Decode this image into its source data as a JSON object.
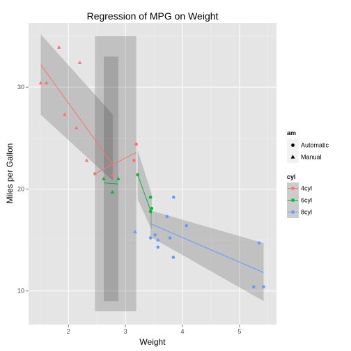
{
  "chart_data": {
    "type": "scatter",
    "title": "Regression of MPG on Weight",
    "xlabel": "Weight",
    "ylabel": "Miles per Gallon",
    "xlim": [
      1.3,
      5.65
    ],
    "ylim": [
      6.7,
      36.3
    ],
    "x_ticks": [
      "2",
      "3",
      "4",
      "5"
    ],
    "y_ticks": [
      "10",
      "20",
      "30"
    ],
    "x_tick_values": [
      2,
      3,
      4,
      5
    ],
    "y_tick_values": [
      10,
      20,
      30
    ],
    "grid": true,
    "legend_placement": "right",
    "legends": {
      "am": {
        "title": "am",
        "entries": [
          "Automatic",
          "Manual"
        ]
      },
      "cyl": {
        "title": "cyl",
        "entries": [
          "4cyl",
          "6cyl",
          "8cyl"
        ]
      }
    },
    "colors": {
      "4cyl": "#F8766D",
      "6cyl": "#00BA38",
      "8cyl": "#619CFF"
    },
    "series": [
      {
        "name": "4cyl",
        "points": [
          {
            "x": 1.513,
            "y": 30.4,
            "am": "Manual"
          },
          {
            "x": 1.615,
            "y": 30.4,
            "am": "Manual"
          },
          {
            "x": 1.835,
            "y": 33.9,
            "am": "Manual"
          },
          {
            "x": 1.935,
            "y": 27.3,
            "am": "Manual"
          },
          {
            "x": 2.14,
            "y": 26.0,
            "am": "Manual"
          },
          {
            "x": 2.2,
            "y": 32.4,
            "am": "Manual"
          },
          {
            "x": 2.32,
            "y": 22.8,
            "am": "Manual"
          },
          {
            "x": 2.465,
            "y": 21.5,
            "am": "Automatic"
          },
          {
            "x": 2.78,
            "y": 21.4,
            "am": "Manual"
          },
          {
            "x": 3.15,
            "y": 22.8,
            "am": "Automatic"
          },
          {
            "x": 3.19,
            "y": 24.4,
            "am": "Automatic"
          }
        ],
        "fits": [
          {
            "am": "Manual",
            "x": [
              1.513,
              2.78
            ],
            "y": [
              32.2,
              22.4
            ],
            "band_lower": [
              27.3,
              20.8
            ],
            "band_upper": [
              35.2,
              27.3
            ]
          },
          {
            "am": "Automatic",
            "x": [
              2.465,
              3.19
            ],
            "y": [
              21.5,
              23.6
            ],
            "band_lower": [
              8.0,
              8.0
            ],
            "band_upper": [
              35.0,
              35.0
            ]
          }
        ]
      },
      {
        "name": "6cyl",
        "points": [
          {
            "x": 2.62,
            "y": 21.0,
            "am": "Manual"
          },
          {
            "x": 2.77,
            "y": 19.7,
            "am": "Manual"
          },
          {
            "x": 2.875,
            "y": 21.0,
            "am": "Manual"
          },
          {
            "x": 3.215,
            "y": 21.4,
            "am": "Automatic"
          },
          {
            "x": 3.44,
            "y": 19.2,
            "am": "Automatic"
          },
          {
            "x": 3.44,
            "y": 17.8,
            "am": "Automatic"
          },
          {
            "x": 3.46,
            "y": 18.1,
            "am": "Automatic"
          }
        ],
        "fits": [
          {
            "am": "Manual",
            "x": [
              2.62,
              2.875
            ],
            "y": [
              20.6,
              20.5
            ],
            "band_lower": [
              9.0,
              9.0
            ],
            "band_upper": [
              33.0,
              33.0
            ]
          },
          {
            "am": "Automatic",
            "x": [
              3.215,
              3.46
            ],
            "y": [
              21.4,
              17.6
            ],
            "band_lower": [
              19.0,
              16.0
            ],
            "band_upper": [
              23.8,
              19.5
            ]
          }
        ]
      },
      {
        "name": "8cyl",
        "points": [
          {
            "x": 3.17,
            "y": 15.8,
            "am": "Manual"
          },
          {
            "x": 3.44,
            "y": 15.2,
            "am": "Automatic"
          },
          {
            "x": 3.52,
            "y": 15.5,
            "am": "Automatic"
          },
          {
            "x": 3.57,
            "y": 14.3,
            "am": "Automatic"
          },
          {
            "x": 3.57,
            "y": 15.0,
            "am": "Manual"
          },
          {
            "x": 3.73,
            "y": 17.3,
            "am": "Automatic"
          },
          {
            "x": 3.78,
            "y": 15.2,
            "am": "Automatic"
          },
          {
            "x": 3.84,
            "y": 13.3,
            "am": "Automatic"
          },
          {
            "x": 3.845,
            "y": 19.2,
            "am": "Automatic"
          },
          {
            "x": 4.07,
            "y": 16.4,
            "am": "Automatic"
          },
          {
            "x": 5.25,
            "y": 10.4,
            "am": "Automatic"
          },
          {
            "x": 5.345,
            "y": 14.7,
            "am": "Automatic"
          },
          {
            "x": 5.424,
            "y": 10.4,
            "am": "Automatic"
          }
        ],
        "fits": [
          {
            "am": "Automatic",
            "x": [
              3.44,
              5.424
            ],
            "y": [
              16.6,
              11.8
            ],
            "band_lower": [
              15.3,
              9.0
            ],
            "band_upper": [
              17.9,
              14.7
            ]
          }
        ]
      }
    ]
  }
}
